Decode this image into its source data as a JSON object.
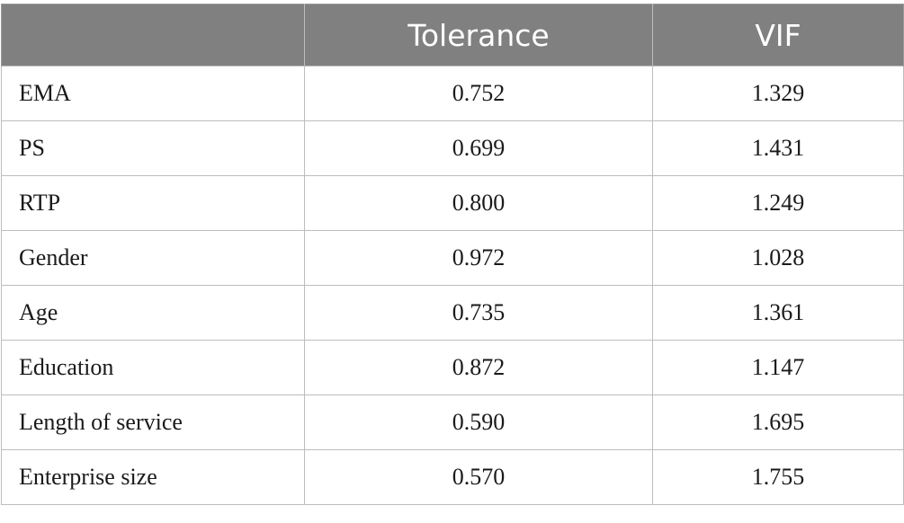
{
  "table": {
    "headers": [
      "",
      "Tolerance",
      "VIF"
    ],
    "rows": [
      {
        "label": "EMA",
        "tolerance": "0.752",
        "vif": "1.329"
      },
      {
        "label": "PS",
        "tolerance": "0.699",
        "vif": "1.431"
      },
      {
        "label": "RTP",
        "tolerance": "0.800",
        "vif": "1.249"
      },
      {
        "label": "Gender",
        "tolerance": "0.972",
        "vif": "1.028"
      },
      {
        "label": "Age",
        "tolerance": "0.735",
        "vif": "1.361"
      },
      {
        "label": "Education",
        "tolerance": "0.872",
        "vif": "1.147"
      },
      {
        "label": "Length of service",
        "tolerance": "0.590",
        "vif": "1.695"
      },
      {
        "label": "Enterprise size",
        "tolerance": "0.570",
        "vif": "1.755"
      }
    ]
  },
  "colors": {
    "header_background": "#808080",
    "header_text": "#ffffff",
    "border": "#bdbdbd"
  }
}
